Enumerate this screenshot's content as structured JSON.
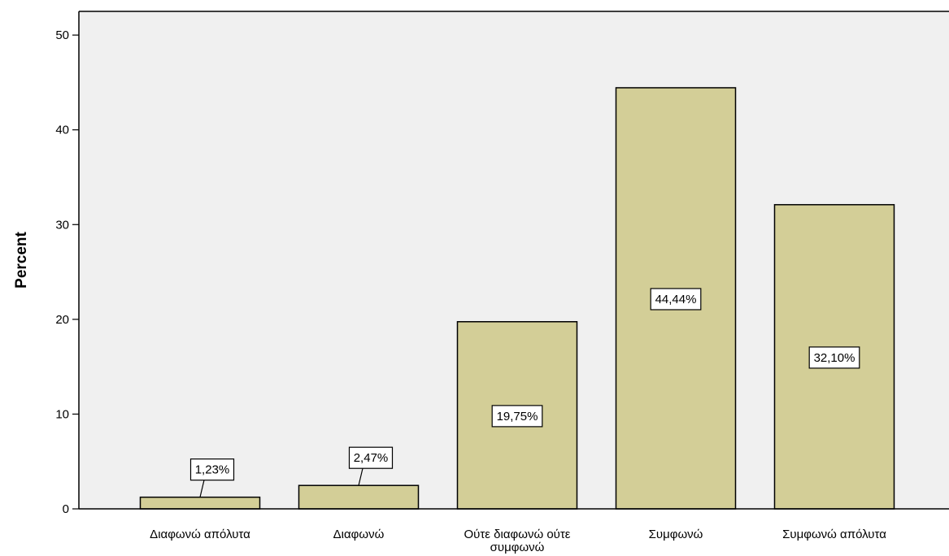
{
  "chart_data": {
    "type": "bar",
    "categories": [
      [
        "Διαφωνώ απόλυτα"
      ],
      [
        "Διαφωνώ"
      ],
      [
        "Ούτε διαφωνώ ούτε",
        "συμφωνώ"
      ],
      [
        "Συμφωνώ"
      ],
      [
        "Συμφωνώ απόλυτα"
      ]
    ],
    "values": [
      1.23,
      2.47,
      19.75,
      44.44,
      32.1
    ],
    "data_labels": [
      "1,23%",
      "2,47%",
      "19,75%",
      "44,44%",
      "32,10%"
    ],
    "title": "",
    "xlabel": "",
    "ylabel": "Percent",
    "ylim": [
      0,
      52.5
    ],
    "yticks": [
      0,
      10,
      20,
      30,
      40,
      50
    ],
    "ytick_labels": [
      "0",
      "10",
      "20",
      "30",
      "40",
      "50"
    ],
    "grid": false,
    "legend": "none"
  },
  "colors": {
    "plot_background": "#f0f0f0",
    "bar_fill": "#d3ce97",
    "bar_stroke": "#000000",
    "axis": "#000000",
    "label_box_fill": "#ffffff",
    "label_box_stroke": "#000000"
  }
}
